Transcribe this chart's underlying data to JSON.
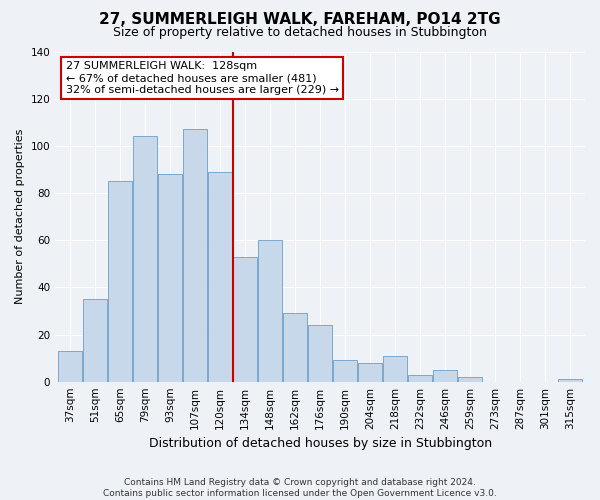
{
  "title": "27, SUMMERLEIGH WALK, FAREHAM, PO14 2TG",
  "subtitle": "Size of property relative to detached houses in Stubbington",
  "xlabel": "Distribution of detached houses by size in Stubbington",
  "ylabel": "Number of detached properties",
  "categories": [
    "37sqm",
    "51sqm",
    "65sqm",
    "79sqm",
    "93sqm",
    "107sqm",
    "120sqm",
    "134sqm",
    "148sqm",
    "162sqm",
    "176sqm",
    "190sqm",
    "204sqm",
    "218sqm",
    "232sqm",
    "246sqm",
    "259sqm",
    "273sqm",
    "287sqm",
    "301sqm",
    "315sqm"
  ],
  "values": [
    13,
    35,
    85,
    104,
    88,
    107,
    89,
    53,
    60,
    29,
    24,
    9,
    8,
    11,
    3,
    5,
    2,
    0,
    0,
    0,
    1
  ],
  "bar_color": "#c8d8eb",
  "bar_edge_color": "#7aa8cc",
  "vline_color": "#cc0000",
  "annotation_title": "27 SUMMERLEIGH WALK:  128sqm",
  "annotation_line1": "← 67% of detached houses are smaller (481)",
  "annotation_line2": "32% of semi-detached houses are larger (229) →",
  "annotation_box_color": "#ffffff",
  "annotation_box_edge": "#cc0000",
  "footer1": "Contains HM Land Registry data © Crown copyright and database right 2024.",
  "footer2": "Contains public sector information licensed under the Open Government Licence v3.0.",
  "ylim": [
    0,
    140
  ],
  "yticks": [
    0,
    20,
    40,
    60,
    80,
    100,
    120,
    140
  ],
  "background_color": "#eef2f7",
  "grid_color": "#ffffff",
  "title_fontsize": 11,
  "subtitle_fontsize": 9,
  "xlabel_fontsize": 9,
  "ylabel_fontsize": 8,
  "tick_fontsize": 7.5,
  "footer_fontsize": 6.5
}
